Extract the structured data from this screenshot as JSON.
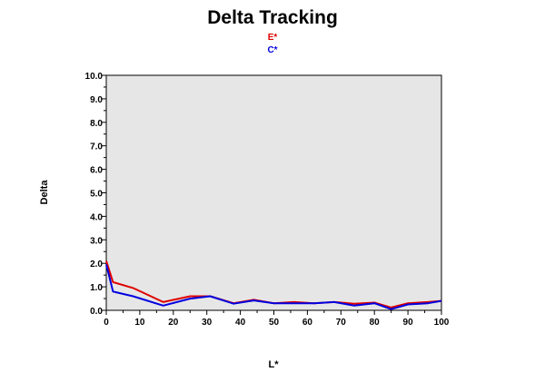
{
  "chart_data": {
    "type": "line",
    "title": "Delta Tracking",
    "xlabel": "L*",
    "ylabel": "Delta",
    "xlim": [
      0,
      100
    ],
    "ylim": [
      0,
      10
    ],
    "x_ticks": [
      0,
      10,
      20,
      30,
      40,
      50,
      60,
      70,
      80,
      90,
      100
    ],
    "y_ticks": [
      0.0,
      1.0,
      2.0,
      3.0,
      4.0,
      5.0,
      6.0,
      7.0,
      8.0,
      9.0,
      10.0
    ],
    "x_tick_labels": [
      "0",
      "10",
      "20",
      "30",
      "40",
      "50",
      "60",
      "70",
      "80",
      "90",
      "100"
    ],
    "y_tick_labels": [
      "0.0",
      "1.0",
      "2.0",
      "3.0",
      "4.0",
      "5.0",
      "6.0",
      "7.0",
      "8.0",
      "9.0",
      "10.0"
    ],
    "grid": false,
    "legend_position": "top-center",
    "plot_background": "#e6e6e6",
    "series": [
      {
        "name": "E*",
        "color": "#e00000",
        "x": [
          0,
          2,
          8,
          17,
          25,
          31,
          38,
          44,
          50,
          56,
          62,
          68,
          74,
          80,
          85,
          90,
          96,
          100
        ],
        "y": [
          2.1,
          1.2,
          0.95,
          0.35,
          0.6,
          0.6,
          0.3,
          0.45,
          0.3,
          0.35,
          0.3,
          0.35,
          0.28,
          0.33,
          0.12,
          0.3,
          0.35,
          0.4
        ]
      },
      {
        "name": "C*",
        "color": "#0000e0",
        "x": [
          0,
          2,
          8,
          17,
          25,
          31,
          38,
          44,
          50,
          56,
          62,
          68,
          74,
          80,
          85,
          90,
          96,
          100
        ],
        "y": [
          1.95,
          0.8,
          0.6,
          0.2,
          0.5,
          0.6,
          0.28,
          0.42,
          0.3,
          0.3,
          0.3,
          0.35,
          0.2,
          0.3,
          0.05,
          0.25,
          0.3,
          0.4
        ]
      }
    ]
  }
}
